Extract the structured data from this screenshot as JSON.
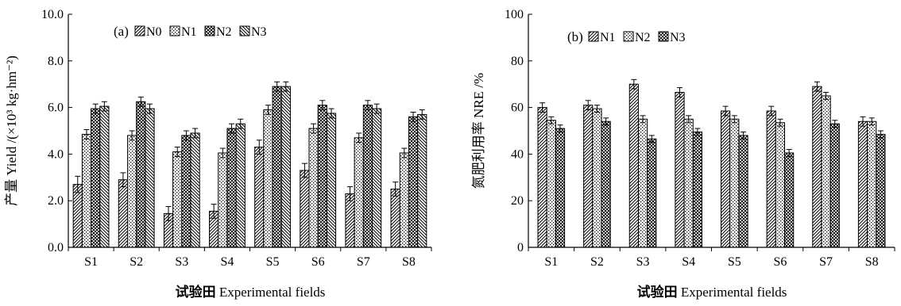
{
  "chart_data": [
    {
      "type": "bar",
      "panel_label": "(a)",
      "ylabel": "产量 Yield /(×10³ kg·hm⁻²)",
      "xlabel_cn": "试验田",
      "xlabel_en": "Experimental fields",
      "categories": [
        "S1",
        "S2",
        "S3",
        "S4",
        "S5",
        "S6",
        "S7",
        "S8"
      ],
      "ylim": [
        0,
        10
      ],
      "yticks": [
        "0.0",
        "2.0",
        "4.0",
        "6.0",
        "8.0",
        "10.0"
      ],
      "grid": false,
      "legend_position": "top-left",
      "series": [
        {
          "name": "N0",
          "pattern": "diag",
          "values": [
            2.7,
            2.9,
            1.45,
            1.55,
            4.3,
            3.3,
            2.3,
            2.5
          ],
          "errors": [
            0.35,
            0.3,
            0.3,
            0.3,
            0.3,
            0.3,
            0.3,
            0.3
          ]
        },
        {
          "name": "N1",
          "pattern": "dots",
          "values": [
            4.85,
            4.8,
            4.1,
            4.05,
            5.9,
            5.1,
            4.7,
            4.05
          ],
          "errors": [
            0.2,
            0.2,
            0.2,
            0.2,
            0.2,
            0.2,
            0.2,
            0.2
          ]
        },
        {
          "name": "N2",
          "pattern": "cross",
          "values": [
            5.95,
            6.25,
            4.8,
            5.1,
            6.9,
            6.1,
            6.1,
            5.6
          ],
          "errors": [
            0.2,
            0.2,
            0.2,
            0.2,
            0.2,
            0.2,
            0.2,
            0.2
          ]
        },
        {
          "name": "N3",
          "pattern": "rdiag",
          "values": [
            6.05,
            5.95,
            4.9,
            5.3,
            6.9,
            5.75,
            5.95,
            5.7
          ],
          "errors": [
            0.2,
            0.2,
            0.2,
            0.2,
            0.2,
            0.2,
            0.2,
            0.2
          ]
        }
      ]
    },
    {
      "type": "bar",
      "panel_label": "(b)",
      "ylabel": "氮肥利用率 NRE /%",
      "xlabel_cn": "试验田",
      "xlabel_en": "Experimental fields",
      "categories": [
        "S1",
        "S2",
        "S3",
        "S4",
        "S5",
        "S6",
        "S7",
        "S8"
      ],
      "ylim": [
        0,
        100
      ],
      "yticks": [
        "0",
        "20",
        "40",
        "60",
        "80",
        "100"
      ],
      "grid": false,
      "legend_position": "top-left",
      "series": [
        {
          "name": "N1",
          "pattern": "diag",
          "values": [
            60,
            61,
            70,
            66.5,
            58.5,
            58.5,
            69,
            54
          ],
          "errors": [
            2,
            2,
            2,
            2,
            2,
            2,
            2,
            2
          ]
        },
        {
          "name": "N2",
          "pattern": "dots",
          "values": [
            54.5,
            59.5,
            55,
            55,
            55,
            53.5,
            65,
            54
          ],
          "errors": [
            1.5,
            1.5,
            1.5,
            1.5,
            1.5,
            1.5,
            1.5,
            1.5
          ]
        },
        {
          "name": "N3",
          "pattern": "cross",
          "values": [
            51,
            54,
            46.5,
            49.5,
            48,
            40.5,
            53,
            48.5
          ],
          "errors": [
            1.5,
            1.5,
            1.5,
            1.5,
            1.5,
            1.5,
            1.5,
            1.5
          ]
        }
      ]
    }
  ]
}
